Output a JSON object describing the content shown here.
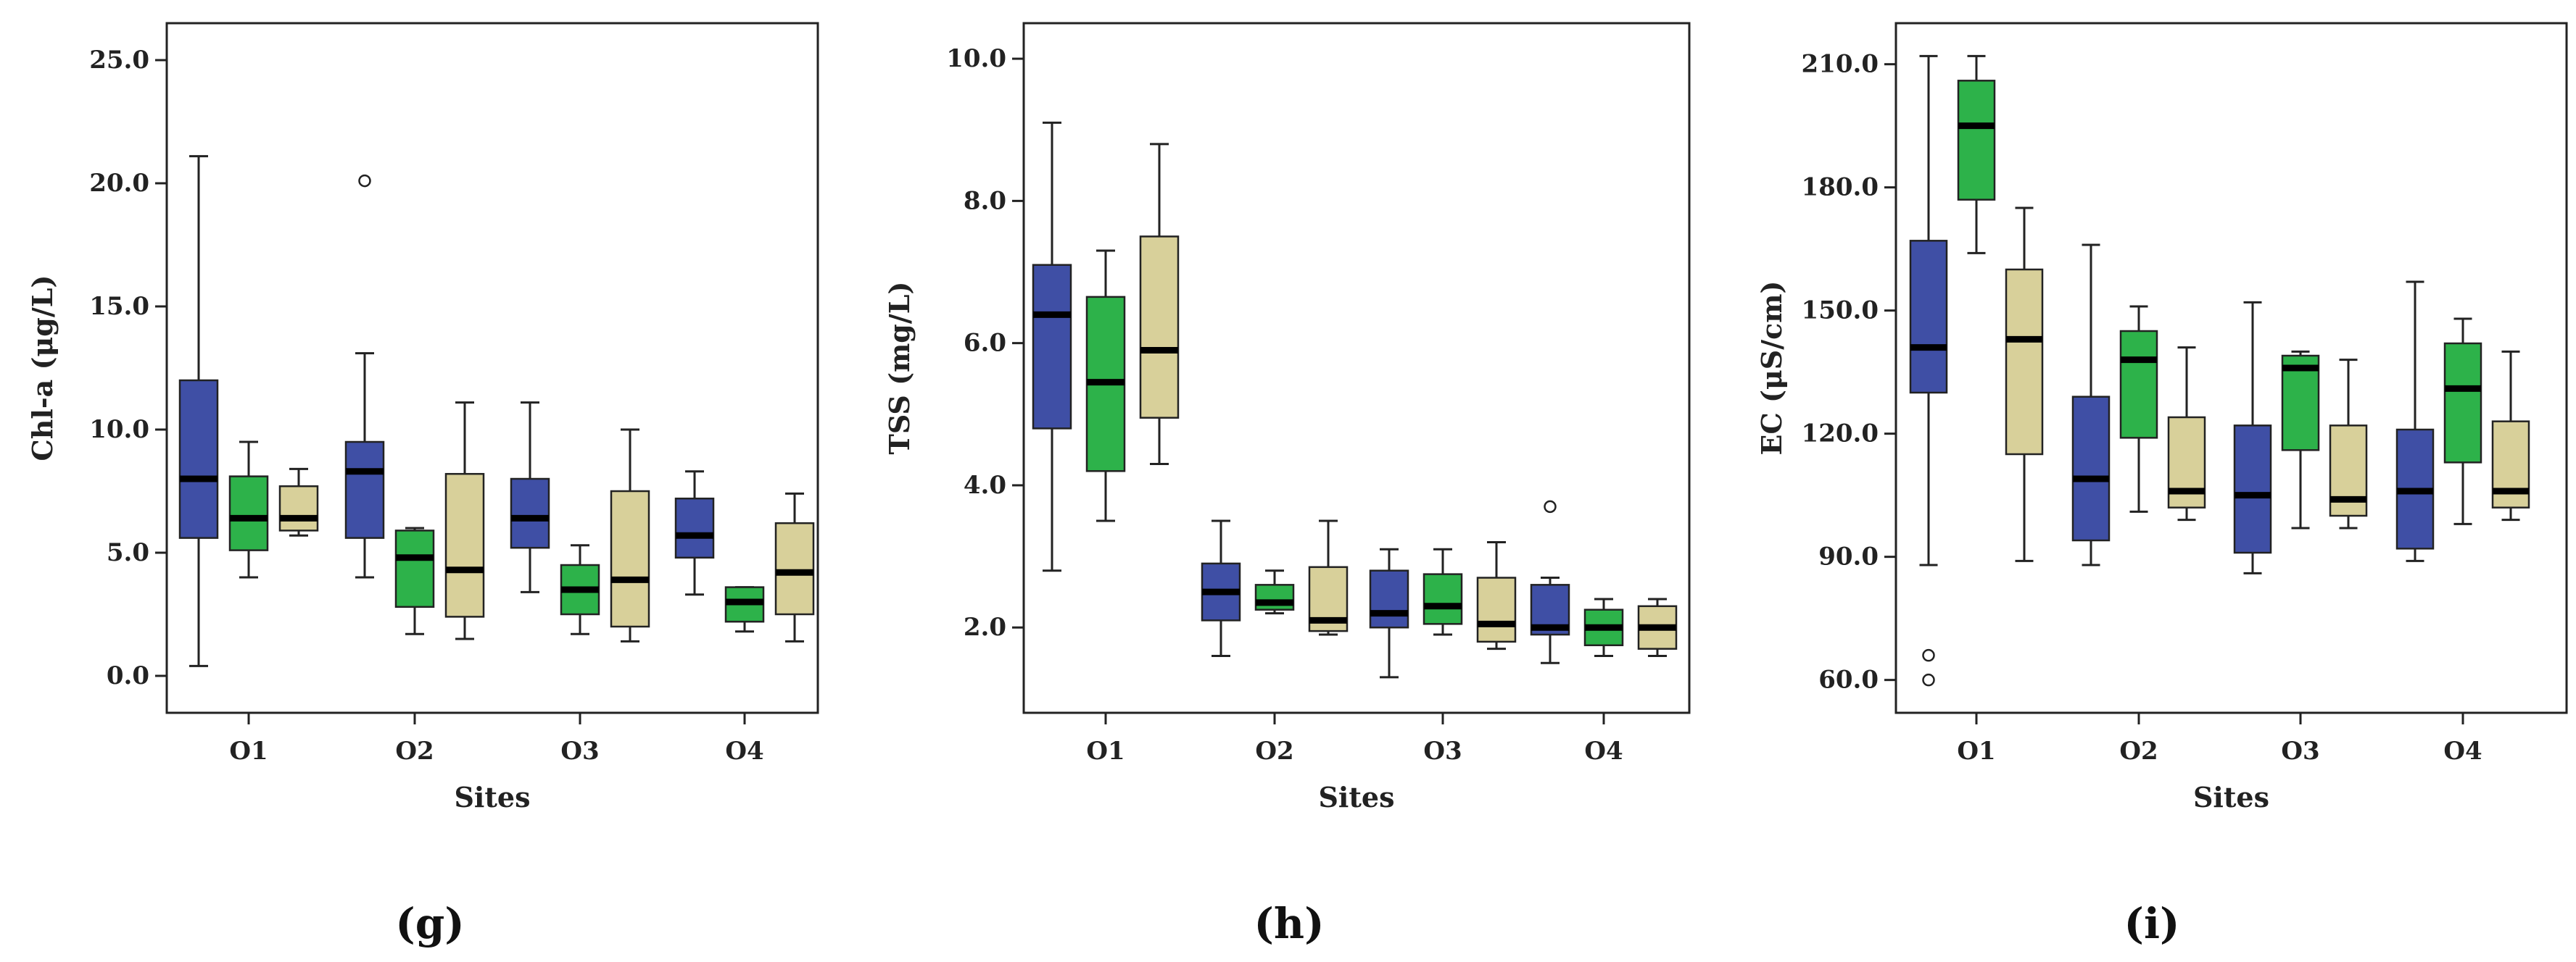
{
  "chart_data": [
    {
      "type": "box",
      "panel_label": "(g)",
      "xlabel": "Sites",
      "ylabel": "Chl-a (μg/L)",
      "ylim": [
        -1.5,
        26.5
      ],
      "yticks": [
        0,
        5,
        10,
        15,
        20,
        25
      ],
      "ytick_labels": [
        "0.0",
        "5.0",
        "10.0",
        "15.0",
        "20.0",
        "25.0"
      ],
      "categories": [
        "O1",
        "O2",
        "O3",
        "O4"
      ],
      "series_colors": [
        "#3f4fa5",
        "#2db24a",
        "#d8d09a"
      ],
      "boxes": [
        {
          "site": "O1",
          "series": 0,
          "min": 0.4,
          "q1": 5.6,
          "median": 8.0,
          "q3": 12.0,
          "max": 21.1,
          "outliers": []
        },
        {
          "site": "O1",
          "series": 1,
          "min": 4.0,
          "q1": 5.1,
          "median": 6.4,
          "q3": 8.1,
          "max": 9.5,
          "outliers": []
        },
        {
          "site": "O1",
          "series": 2,
          "min": 5.7,
          "q1": 5.9,
          "median": 6.4,
          "q3": 7.7,
          "max": 8.4,
          "outliers": []
        },
        {
          "site": "O2",
          "series": 0,
          "min": 4.0,
          "q1": 5.6,
          "median": 8.3,
          "q3": 9.5,
          "max": 13.1,
          "outliers": [
            20.1
          ]
        },
        {
          "site": "O2",
          "series": 1,
          "min": 1.7,
          "q1": 2.8,
          "median": 4.8,
          "q3": 5.9,
          "max": 6.0,
          "outliers": []
        },
        {
          "site": "O2",
          "series": 2,
          "min": 1.5,
          "q1": 2.4,
          "median": 4.3,
          "q3": 8.2,
          "max": 11.1,
          "outliers": []
        },
        {
          "site": "O3",
          "series": 0,
          "min": 3.4,
          "q1": 5.2,
          "median": 6.4,
          "q3": 8.0,
          "max": 11.1,
          "outliers": []
        },
        {
          "site": "O3",
          "series": 1,
          "min": 1.7,
          "q1": 2.5,
          "median": 3.5,
          "q3": 4.5,
          "max": 5.3,
          "outliers": []
        },
        {
          "site": "O3",
          "series": 2,
          "min": 1.4,
          "q1": 2.0,
          "median": 3.9,
          "q3": 7.5,
          "max": 10.0,
          "outliers": []
        },
        {
          "site": "O4",
          "series": 0,
          "min": 3.3,
          "q1": 4.8,
          "median": 5.7,
          "q3": 7.2,
          "max": 8.3,
          "outliers": []
        },
        {
          "site": "O4",
          "series": 1,
          "min": 1.8,
          "q1": 2.2,
          "median": 3.0,
          "q3": 3.6,
          "max": 3.6,
          "outliers": []
        },
        {
          "site": "O4",
          "series": 2,
          "min": 1.4,
          "q1": 2.5,
          "median": 4.2,
          "q3": 6.2,
          "max": 7.4,
          "outliers": []
        }
      ]
    },
    {
      "type": "box",
      "panel_label": "(h)",
      "xlabel": "Sites",
      "ylabel": "TSS (mg/L)",
      "ylim": [
        0.8,
        10.5
      ],
      "yticks": [
        2,
        4,
        6,
        8,
        10
      ],
      "ytick_labels": [
        "2.0",
        "4.0",
        "6.0",
        "8.0",
        "10.0"
      ],
      "categories": [
        "O1",
        "O2",
        "O3",
        "O4"
      ],
      "series_colors": [
        "#3f4fa5",
        "#2db24a",
        "#d8d09a"
      ],
      "boxes": [
        {
          "site": "O1",
          "series": 0,
          "min": 2.8,
          "q1": 4.8,
          "median": 6.4,
          "q3": 7.1,
          "max": 9.1,
          "outliers": []
        },
        {
          "site": "O1",
          "series": 1,
          "min": 3.5,
          "q1": 4.2,
          "median": 5.45,
          "q3": 6.65,
          "max": 7.3,
          "outliers": []
        },
        {
          "site": "O1",
          "series": 2,
          "min": 4.3,
          "q1": 4.95,
          "median": 5.9,
          "q3": 7.5,
          "max": 8.8,
          "outliers": []
        },
        {
          "site": "O2",
          "series": 0,
          "min": 1.6,
          "q1": 2.1,
          "median": 2.5,
          "q3": 2.9,
          "max": 3.5,
          "outliers": []
        },
        {
          "site": "O2",
          "series": 1,
          "min": 2.2,
          "q1": 2.25,
          "median": 2.35,
          "q3": 2.6,
          "max": 2.8,
          "outliers": []
        },
        {
          "site": "O2",
          "series": 2,
          "min": 1.9,
          "q1": 1.95,
          "median": 2.1,
          "q3": 2.85,
          "max": 3.5,
          "outliers": []
        },
        {
          "site": "O3",
          "series": 0,
          "min": 1.3,
          "q1": 2.0,
          "median": 2.2,
          "q3": 2.8,
          "max": 3.1,
          "outliers": []
        },
        {
          "site": "O3",
          "series": 1,
          "min": 1.9,
          "q1": 2.05,
          "median": 2.3,
          "q3": 2.75,
          "max": 3.1,
          "outliers": []
        },
        {
          "site": "O3",
          "series": 2,
          "min": 1.7,
          "q1": 1.8,
          "median": 2.05,
          "q3": 2.7,
          "max": 3.2,
          "outliers": []
        },
        {
          "site": "O4",
          "series": 0,
          "min": 1.5,
          "q1": 1.9,
          "median": 2.0,
          "q3": 2.6,
          "max": 2.7,
          "outliers": [
            3.7
          ]
        },
        {
          "site": "O4",
          "series": 1,
          "min": 1.6,
          "q1": 1.75,
          "median": 2.0,
          "q3": 2.25,
          "max": 2.4,
          "outliers": []
        },
        {
          "site": "O4",
          "series": 2,
          "min": 1.6,
          "q1": 1.7,
          "median": 2.0,
          "q3": 2.3,
          "max": 2.4,
          "outliers": []
        }
      ]
    },
    {
      "type": "box",
      "panel_label": "(i)",
      "xlabel": "Sites",
      "ylabel": "EC (μS/cm)",
      "ylim": [
        52,
        220
      ],
      "yticks": [
        60,
        90,
        120,
        150,
        180,
        210
      ],
      "ytick_labels": [
        "60.0",
        "90.0",
        "120.0",
        "150.0",
        "180.0",
        "210.0"
      ],
      "categories": [
        "O1",
        "O2",
        "O3",
        "O4"
      ],
      "series_colors": [
        "#3f4fa5",
        "#2db24a",
        "#d8d09a"
      ],
      "boxes": [
        {
          "site": "O1",
          "series": 0,
          "min": 88,
          "q1": 130,
          "median": 141,
          "q3": 167,
          "max": 212,
          "outliers": [
            66,
            60
          ]
        },
        {
          "site": "O1",
          "series": 1,
          "min": 164,
          "q1": 177,
          "median": 195,
          "q3": 206,
          "max": 212,
          "outliers": []
        },
        {
          "site": "O1",
          "series": 2,
          "min": 89,
          "q1": 115,
          "median": 143,
          "q3": 160,
          "max": 175,
          "outliers": []
        },
        {
          "site": "O2",
          "series": 0,
          "min": 88,
          "q1": 94,
          "median": 109,
          "q3": 129,
          "max": 166,
          "outliers": []
        },
        {
          "site": "O2",
          "series": 1,
          "min": 101,
          "q1": 119,
          "median": 138,
          "q3": 145,
          "max": 151,
          "outliers": []
        },
        {
          "site": "O2",
          "series": 2,
          "min": 99,
          "q1": 102,
          "median": 106,
          "q3": 124,
          "max": 141,
          "outliers": []
        },
        {
          "site": "O3",
          "series": 0,
          "min": 86,
          "q1": 91,
          "median": 105,
          "q3": 122,
          "max": 152,
          "outliers": []
        },
        {
          "site": "O3",
          "series": 1,
          "min": 97,
          "q1": 116,
          "median": 136,
          "q3": 139,
          "max": 140,
          "outliers": []
        },
        {
          "site": "O3",
          "series": 2,
          "min": 97,
          "q1": 100,
          "median": 104,
          "q3": 122,
          "max": 138,
          "outliers": []
        },
        {
          "site": "O4",
          "series": 0,
          "min": 89,
          "q1": 92,
          "median": 106,
          "q3": 121,
          "max": 157,
          "outliers": []
        },
        {
          "site": "O4",
          "series": 1,
          "min": 98,
          "q1": 113,
          "median": 131,
          "q3": 142,
          "max": 148,
          "outliers": []
        },
        {
          "site": "O4",
          "series": 2,
          "min": 99,
          "q1": 102,
          "median": 106,
          "q3": 123,
          "max": 140,
          "outliers": []
        }
      ]
    }
  ]
}
